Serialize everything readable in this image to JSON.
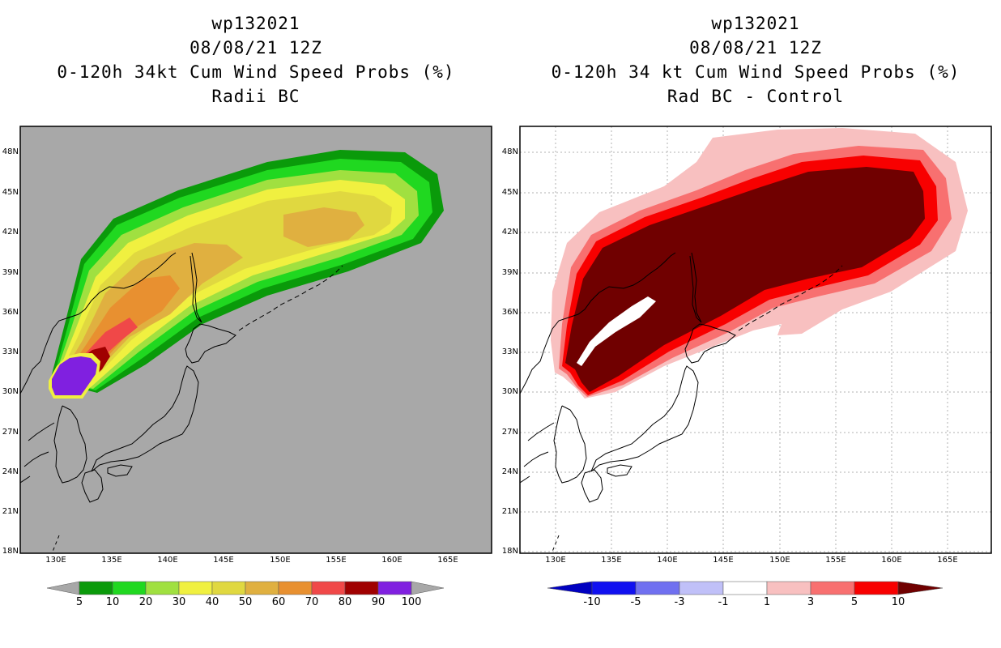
{
  "left_panel": {
    "title_line1": "wp132021",
    "title_line2": "08/08/21 12Z",
    "title_line3": "0-120h 34kt Cum Wind Speed Probs (%)",
    "title_line4": "Radii BC",
    "colorbar_labels": [
      "5",
      "10",
      "20",
      "30",
      "40",
      "50",
      "60",
      "70",
      "80",
      "90",
      "100"
    ],
    "colorbar_colors": [
      "#0a9a0a",
      "#20d820",
      "#a0e040",
      "#f0f040",
      "#e0d840",
      "#e0b040",
      "#e89030",
      "#f04848",
      "#a00000",
      "#8020e0"
    ],
    "background_color": "#a8a8a8"
  },
  "right_panel": {
    "title_line1": "wp132021",
    "title_line2": "08/08/21 12Z",
    "title_line3": "0-120h 34 kt Cum Wind Speed Probs (%)",
    "title_line4": "Rad BC - Control",
    "colorbar_labels": [
      "-10",
      "-5",
      "-3",
      "-1",
      "1",
      "3",
      "5",
      "10"
    ],
    "colorbar_colors": [
      "#0000c0",
      "#1010f0",
      "#7070f0",
      "#c0c0f8",
      "#ffffff",
      "#f8c0c0",
      "#f87070",
      "#f80000",
      "#700000"
    ],
    "background_color": "#ffffff"
  },
  "map": {
    "lat_labels": [
      "48N",
      "45N",
      "42N",
      "39N",
      "36N",
      "33N",
      "30N",
      "27N",
      "24N",
      "21N",
      "18N"
    ],
    "lon_labels": [
      "130E",
      "135E",
      "140E",
      "145E",
      "150E",
      "155E",
      "160E",
      "165E"
    ]
  }
}
